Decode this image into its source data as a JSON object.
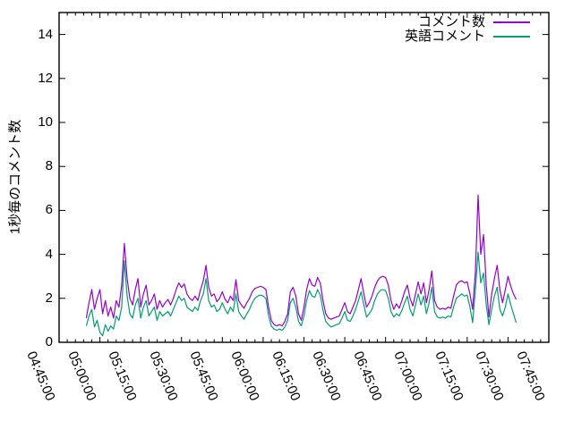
{
  "chart_data": {
    "type": "line",
    "title": "",
    "ylabel": "1秒毎のコメント数",
    "xlabel": "",
    "background": "#ffffff",
    "frame_color": "#000000",
    "grid": false,
    "legend_position": "top-right-inside",
    "ylim": [
      0,
      15
    ],
    "y_ticks": [
      0,
      2,
      4,
      6,
      8,
      10,
      12,
      14
    ],
    "xlim_minutes": [
      0,
      180
    ],
    "x_major_step_min": 15,
    "x_minor_step_min": 3,
    "x_tick_labels": [
      "04:45:00",
      "05:00:00",
      "05:15:00",
      "05:30:00",
      "05:45:00",
      "06:00:00",
      "06:15:00",
      "06:30:00",
      "06:45:00",
      "07:00:00",
      "07:15:00",
      "07:30:00",
      "07:45:00"
    ],
    "x_axis_origin_time": "04:45:00",
    "series": [
      {
        "name": "コメント数",
        "color": "#9400d3",
        "start_minute": 10,
        "step_minute": 1,
        "values": [
          1.1,
          1.8,
          2.4,
          1.5,
          2.0,
          2.4,
          1.3,
          1.9,
          1.2,
          1.6,
          1.1,
          1.9,
          1.6,
          2.6,
          4.5,
          2.9,
          2.0,
          1.7,
          2.4,
          2.9,
          1.6,
          2.2,
          2.6,
          1.7,
          1.9,
          2.2,
          1.5,
          1.9,
          1.6,
          1.8,
          1.95,
          1.7,
          2.0,
          2.4,
          2.7,
          2.5,
          2.65,
          2.2,
          2.0,
          1.9,
          2.1,
          1.9,
          2.4,
          2.8,
          3.5,
          2.5,
          2.1,
          2.2,
          1.85,
          2.0,
          2.3,
          1.95,
          1.8,
          2.1,
          1.9,
          2.85,
          1.9,
          1.7,
          1.55,
          1.8,
          2.0,
          2.3,
          2.45,
          2.5,
          2.55,
          2.5,
          2.4,
          1.6,
          1.0,
          0.8,
          0.75,
          0.8,
          0.75,
          0.95,
          1.3,
          2.3,
          2.5,
          2.1,
          1.3,
          1.0,
          1.6,
          2.4,
          2.9,
          2.6,
          2.55,
          2.95,
          2.7,
          1.9,
          1.3,
          1.1,
          1.05,
          1.1,
          1.15,
          1.2,
          1.5,
          1.8,
          1.4,
          1.3,
          1.6,
          1.9,
          2.4,
          2.9,
          2.2,
          1.6,
          1.8,
          2.1,
          2.5,
          2.8,
          2.95,
          3.0,
          2.95,
          2.6,
          1.9,
          1.5,
          1.75,
          1.55,
          1.9,
          2.3,
          2.6,
          2.0,
          1.65,
          2.2,
          2.75,
          2.2,
          2.7,
          1.8,
          2.4,
          3.25,
          1.9,
          1.6,
          1.5,
          1.55,
          1.5,
          1.6,
          1.55,
          2.1,
          2.6,
          2.75,
          2.8,
          2.7,
          2.75,
          2.2,
          1.5,
          3.2,
          6.7,
          4.0,
          4.9,
          2.6,
          1.15,
          2.2,
          2.9,
          3.5,
          2.4,
          1.8,
          2.4,
          3.0,
          2.55,
          2.2,
          1.95
        ]
      },
      {
        "name": "英語コメント",
        "color": "#009e73",
        "start_minute": 10,
        "step_minute": 1,
        "values": [
          0.75,
          1.2,
          1.5,
          0.7,
          1.0,
          0.45,
          0.3,
          0.8,
          0.5,
          0.75,
          0.6,
          1.2,
          1.0,
          1.6,
          3.7,
          2.1,
          1.3,
          1.1,
          1.7,
          2.0,
          1.1,
          1.6,
          1.9,
          1.2,
          1.4,
          1.6,
          1.0,
          1.4,
          1.2,
          1.3,
          1.4,
          1.2,
          1.5,
          1.8,
          2.1,
          1.9,
          2.0,
          1.6,
          1.5,
          1.4,
          1.6,
          1.45,
          1.9,
          2.2,
          2.9,
          1.9,
          1.6,
          1.7,
          1.4,
          1.5,
          1.8,
          1.5,
          1.3,
          1.6,
          1.4,
          2.2,
          1.4,
          1.2,
          1.05,
          1.3,
          1.5,
          1.8,
          2.0,
          2.1,
          2.15,
          2.1,
          2.0,
          1.2,
          0.75,
          0.6,
          0.55,
          0.6,
          0.55,
          0.7,
          1.0,
          1.8,
          2.0,
          1.6,
          0.95,
          0.75,
          1.2,
          1.9,
          2.35,
          2.1,
          2.05,
          2.4,
          2.15,
          1.45,
          0.95,
          0.8,
          0.7,
          0.75,
          0.8,
          0.85,
          1.1,
          1.4,
          1.0,
          0.95,
          1.2,
          1.5,
          1.9,
          2.3,
          1.7,
          1.15,
          1.3,
          1.5,
          1.9,
          2.2,
          2.35,
          2.4,
          2.35,
          2.0,
          1.4,
          1.15,
          1.3,
          1.2,
          1.45,
          1.8,
          2.1,
          1.5,
          1.2,
          1.7,
          2.2,
          1.7,
          2.1,
          1.3,
          1.8,
          2.5,
          1.4,
          1.15,
          1.1,
          1.15,
          1.1,
          1.2,
          1.15,
          1.6,
          2.0,
          2.1,
          2.2,
          2.1,
          2.15,
          1.6,
          0.9,
          2.4,
          4.1,
          2.7,
          3.15,
          1.7,
          0.8,
          1.5,
          2.1,
          2.5,
          1.5,
          1.2,
          1.6,
          2.2,
          1.7,
          1.3,
          0.9
        ]
      }
    ]
  },
  "legend": {
    "items": [
      {
        "label": "コメント数"
      },
      {
        "label": "英語コメント"
      }
    ]
  }
}
